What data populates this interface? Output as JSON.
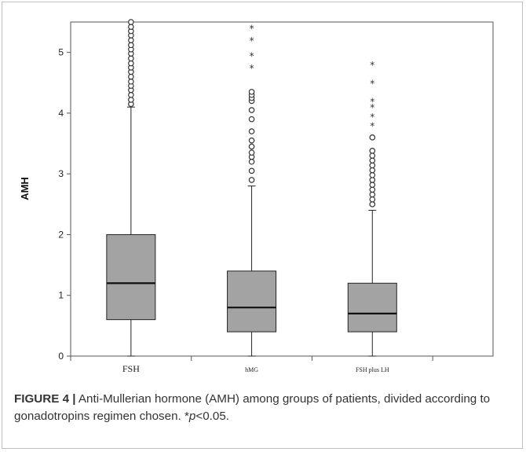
{
  "caption": {
    "label": "FIGURE 4 |",
    "text": " Anti-Mullerian hormone (AMH) among groups of patients, divided according to gonadotropins regimen chosen. *",
    "p_symbol": "p",
    "p_value": "<0.05."
  },
  "colors": {
    "box_fill": "#a3a3a3",
    "line": "#222222",
    "frame": "#bfbfbf"
  },
  "chart_data": {
    "type": "boxplot",
    "ylabel": "AMH",
    "ylim": [
      0,
      5.5
    ],
    "yticks": [
      "0",
      "1",
      "2",
      "3",
      "4",
      "5"
    ],
    "grid": false,
    "categories": [
      "FSH",
      "hMG",
      "FSH plus LH"
    ],
    "boxes": [
      {
        "name": "FSH",
        "whisker_low": 0,
        "q1": 0.6,
        "median": 1.2,
        "q3": 2.0,
        "whisker_high": 4.1,
        "outliers_circle": [
          4.15,
          4.22,
          4.3,
          4.38,
          4.45,
          4.52,
          4.6,
          4.68,
          4.75,
          4.82,
          4.9,
          4.98,
          5.05,
          5.12,
          5.2,
          5.28,
          5.35,
          5.42,
          5.5
        ],
        "outliers_star": []
      },
      {
        "name": "hMG",
        "whisker_low": 0,
        "q1": 0.4,
        "median": 0.8,
        "q3": 1.4,
        "whisker_high": 2.8,
        "outliers_circle": [
          2.9,
          3.05,
          3.2,
          3.28,
          3.35,
          3.45,
          3.55,
          3.7,
          3.9,
          4.05,
          4.2,
          4.25,
          4.3,
          4.35
        ],
        "outliers_star": [
          4.75,
          4.95,
          5.2,
          5.4
        ]
      },
      {
        "name": "FSH plus LH",
        "whisker_low": 0,
        "q1": 0.4,
        "median": 0.7,
        "q3": 1.2,
        "whisker_high": 2.4,
        "outliers_circle": [
          2.5,
          2.58,
          2.66,
          2.74,
          2.82,
          2.9,
          2.98,
          3.06,
          3.14,
          3.22,
          3.3,
          3.38,
          3.6
        ],
        "outliers_star": [
          3.8,
          3.95,
          4.1,
          4.2,
          4.5,
          4.8
        ]
      }
    ]
  }
}
